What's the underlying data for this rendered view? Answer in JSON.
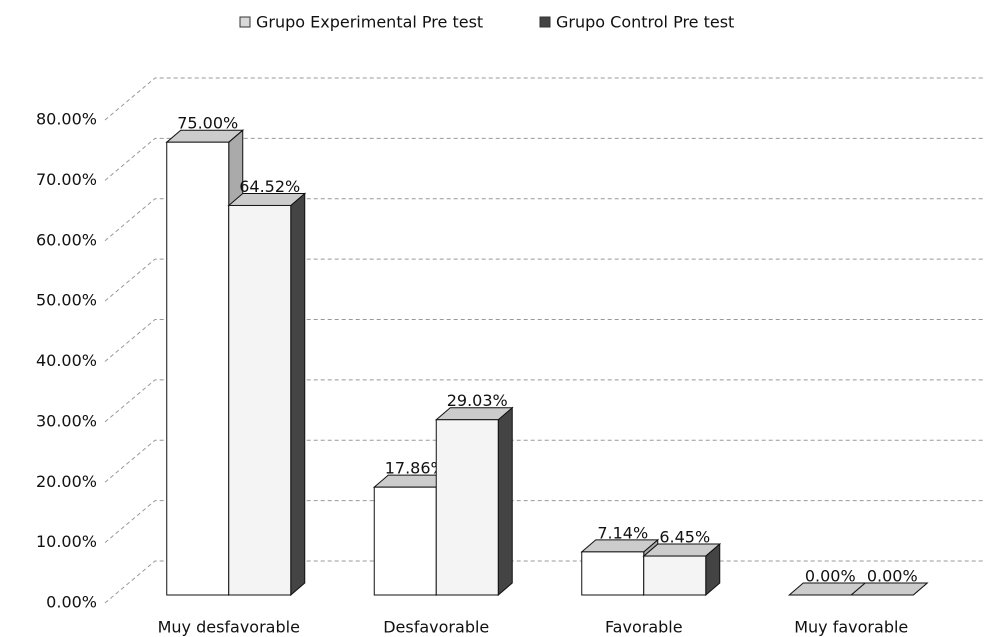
{
  "chart_data": {
    "type": "bar3d",
    "categories": [
      "Muy desfavorable",
      "Desfavorable",
      "Favorable",
      "Muy favorable"
    ],
    "series": [
      {
        "name": "Grupo Experimental Pre test",
        "color": "#d9d9d9",
        "values": [
          75,
          17.86,
          7.14,
          0
        ],
        "value_labels": [
          "75.00%",
          "17.86%",
          "7.14%",
          "0.00%"
        ]
      },
      {
        "name": "Grupo Control Pre test",
        "color": "#444444",
        "values": [
          64.52,
          29.03,
          6.45,
          0
        ],
        "value_labels": [
          "64.52%",
          "29.03%",
          "6.45%",
          "0.00%"
        ]
      }
    ],
    "ylim": [
      0,
      80
    ],
    "yticks": [
      {
        "value": 0,
        "label": "0.00%"
      },
      {
        "value": 10,
        "label": "10.00%"
      },
      {
        "value": 20,
        "label": "20.00%"
      },
      {
        "value": 30,
        "label": "30.00%"
      },
      {
        "value": 40,
        "label": "40.00%"
      },
      {
        "value": 50,
        "label": "50.00%"
      },
      {
        "value": 60,
        "label": "60.00%"
      },
      {
        "value": 70,
        "label": "70.00%"
      },
      {
        "value": 80,
        "label": "80.00%"
      }
    ],
    "grid": true,
    "legend": "top"
  }
}
